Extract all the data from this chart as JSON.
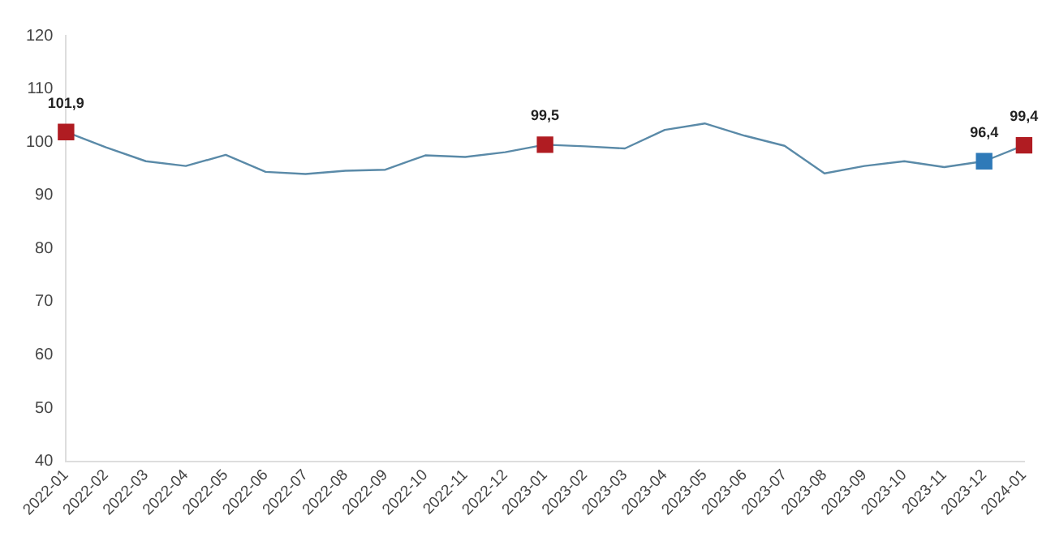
{
  "chart_data": {
    "type": "line",
    "categories": [
      "2022-01",
      "2022-02",
      "2022-03",
      "2022-04",
      "2022-05",
      "2022-06",
      "2022-07",
      "2022-08",
      "2022-09",
      "2022-10",
      "2022-11",
      "2022-12",
      "2023-01",
      "2023-02",
      "2023-03",
      "2023-04",
      "2023-05",
      "2023-06",
      "2023-07",
      "2023-08",
      "2023-09",
      "2023-10",
      "2023-11",
      "2023-12",
      "2024-01"
    ],
    "series": [
      {
        "type": "line",
        "color": "#5a8aa8",
        "marker": "none",
        "values": [
          101.9,
          99.0,
          96.4,
          95.5,
          97.6,
          94.4,
          94.0,
          94.6,
          94.8,
          97.5,
          97.2,
          98.1,
          99.5,
          99.2,
          98.8,
          102.3,
          103.5,
          101.2,
          99.3,
          94.1,
          95.5,
          96.4,
          95.3,
          96.4,
          99.4
        ]
      },
      {
        "type": "scatter",
        "marker": "square",
        "values": [
          101.9,
          null,
          null,
          null,
          null,
          null,
          null,
          null,
          null,
          null,
          null,
          null,
          99.5,
          null,
          null,
          null,
          null,
          null,
          null,
          null,
          null,
          null,
          null,
          96.4,
          99.4
        ],
        "colors": [
          "#b01c22",
          null,
          null,
          null,
          null,
          null,
          null,
          null,
          null,
          null,
          null,
          null,
          "#b01c22",
          null,
          null,
          null,
          null,
          null,
          null,
          null,
          null,
          null,
          null,
          "#2f7ab8",
          "#b01c22"
        ],
        "value_labels": [
          "101,9",
          null,
          null,
          null,
          null,
          null,
          null,
          null,
          null,
          null,
          null,
          null,
          "99,5",
          null,
          null,
          null,
          null,
          null,
          null,
          null,
          null,
          null,
          null,
          "96,4",
          "99,4"
        ]
      }
    ],
    "ylim": [
      40,
      120
    ],
    "yticks": [
      40,
      50,
      60,
      70,
      80,
      90,
      100,
      110,
      120
    ],
    "grid": false,
    "legend": false
  }
}
